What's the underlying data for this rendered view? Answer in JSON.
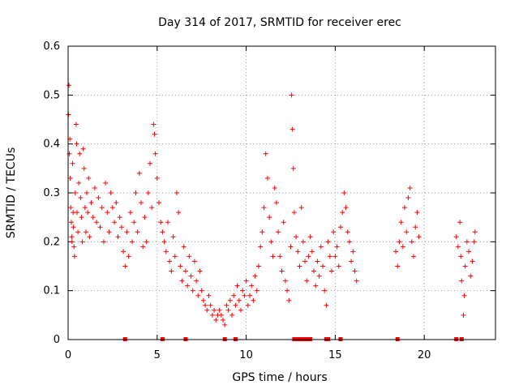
{
  "chart_data": {
    "type": "scatter",
    "title": "Day 314 of 2017, SRMTID for receiver erec",
    "xlabel": "GPS time / hours",
    "ylabel": "SRMTID / TECUs",
    "xlim": [
      0,
      24
    ],
    "ylim": [
      0,
      0.6
    ],
    "x_ticks": [
      0,
      5,
      10,
      15,
      20
    ],
    "x_tick_labels": [
      "0",
      "5",
      "10",
      "15",
      "20"
    ],
    "y_ticks": [
      0,
      0.1,
      0.2,
      0.3,
      0.4,
      0.5,
      0.6
    ],
    "y_tick_labels": [
      "0",
      "0.1",
      "0.2",
      "0.3",
      "0.4",
      "0.5",
      "0.6"
    ],
    "grid": true,
    "marker": "+",
    "color": "#ff0000",
    "series": [
      {
        "name": "SRMTID",
        "points": [
          [
            0.02,
            0.46
          ],
          [
            0.05,
            0.52
          ],
          [
            0.07,
            0.38
          ],
          [
            0.1,
            0.41
          ],
          [
            0.12,
            0.33
          ],
          [
            0.15,
            0.27
          ],
          [
            0.18,
            0.24
          ],
          [
            0.2,
            0.21
          ],
          [
            0.22,
            0.2
          ],
          [
            0.25,
            0.36
          ],
          [
            0.28,
            0.26
          ],
          [
            0.3,
            0.23
          ],
          [
            0.33,
            0.19
          ],
          [
            0.36,
            0.17
          ],
          [
            0.4,
            0.3
          ],
          [
            0.45,
            0.44
          ],
          [
            0.48,
            0.4
          ],
          [
            0.5,
            0.26
          ],
          [
            0.55,
            0.22
          ],
          [
            0.6,
            0.32
          ],
          [
            0.65,
            0.38
          ],
          [
            0.7,
            0.29
          ],
          [
            0.75,
            0.25
          ],
          [
            0.8,
            0.2
          ],
          [
            0.85,
            0.39
          ],
          [
            0.9,
            0.35
          ],
          [
            0.95,
            0.27
          ],
          [
            1.0,
            0.22
          ],
          [
            1.05,
            0.3
          ],
          [
            1.1,
            0.26
          ],
          [
            1.15,
            0.33
          ],
          [
            1.2,
            0.21
          ],
          [
            1.3,
            0.28
          ],
          [
            1.4,
            0.25
          ],
          [
            1.5,
            0.31
          ],
          [
            1.6,
            0.24
          ],
          [
            1.7,
            0.29
          ],
          [
            1.8,
            0.23
          ],
          [
            1.9,
            0.27
          ],
          [
            2.0,
            0.2
          ],
          [
            2.1,
            0.32
          ],
          [
            2.2,
            0.26
          ],
          [
            2.3,
            0.22
          ],
          [
            2.4,
            0.3
          ],
          [
            2.5,
            0.27
          ],
          [
            2.6,
            0.24
          ],
          [
            2.7,
            0.28
          ],
          [
            2.8,
            0.21
          ],
          [
            2.9,
            0.25
          ],
          [
            3.0,
            0.23
          ],
          [
            3.1,
            0.18
          ],
          [
            3.2,
            0.15
          ],
          [
            3.3,
            0.22
          ],
          [
            3.4,
            0.17
          ],
          [
            3.5,
            0.26
          ],
          [
            3.6,
            0.2
          ],
          [
            3.7,
            0.24
          ],
          [
            3.8,
            0.3
          ],
          [
            3.9,
            0.22
          ],
          [
            4.0,
            0.34
          ],
          [
            4.1,
            0.28
          ],
          [
            4.2,
            0.19
          ],
          [
            4.3,
            0.25
          ],
          [
            4.4,
            0.2
          ],
          [
            4.5,
            0.3
          ],
          [
            4.6,
            0.36
          ],
          [
            4.7,
            0.27
          ],
          [
            4.8,
            0.44
          ],
          [
            4.85,
            0.42
          ],
          [
            4.9,
            0.38
          ],
          [
            5.0,
            0.33
          ],
          [
            5.1,
            0.28
          ],
          [
            5.2,
            0.24
          ],
          [
            5.3,
            0.22
          ],
          [
            5.4,
            0.2
          ],
          [
            5.5,
            0.18
          ],
          [
            5.6,
            0.24
          ],
          [
            5.7,
            0.16
          ],
          [
            5.8,
            0.14
          ],
          [
            5.9,
            0.21
          ],
          [
            6.0,
            0.17
          ],
          [
            6.1,
            0.3
          ],
          [
            6.2,
            0.26
          ],
          [
            6.3,
            0.15
          ],
          [
            6.4,
            0.12
          ],
          [
            6.5,
            0.19
          ],
          [
            6.6,
            0.14
          ],
          [
            6.7,
            0.11
          ],
          [
            6.8,
            0.17
          ],
          [
            6.9,
            0.13
          ],
          [
            7.0,
            0.1
          ],
          [
            7.1,
            0.16
          ],
          [
            7.2,
            0.12
          ],
          [
            7.3,
            0.09
          ],
          [
            7.4,
            0.14
          ],
          [
            7.5,
            0.1
          ],
          [
            7.6,
            0.08
          ],
          [
            7.7,
            0.07
          ],
          [
            7.8,
            0.06
          ],
          [
            7.9,
            0.09
          ],
          [
            8.0,
            0.07
          ],
          [
            8.1,
            0.05
          ],
          [
            8.2,
            0.06
          ],
          [
            8.3,
            0.04
          ],
          [
            8.4,
            0.05
          ],
          [
            8.5,
            0.06
          ],
          [
            8.6,
            0.05
          ],
          [
            8.7,
            0.04
          ],
          [
            8.8,
            0.03
          ],
          [
            8.9,
            0.07
          ],
          [
            9.0,
            0.06
          ],
          [
            9.1,
            0.08
          ],
          [
            9.2,
            0.05
          ],
          [
            9.3,
            0.09
          ],
          [
            9.4,
            0.07
          ],
          [
            9.5,
            0.11
          ],
          [
            9.6,
            0.08
          ],
          [
            9.7,
            0.06
          ],
          [
            9.8,
            0.1
          ],
          [
            9.9,
            0.09
          ],
          [
            10.0,
            0.12
          ],
          [
            10.1,
            0.07
          ],
          [
            10.2,
            0.09
          ],
          [
            10.3,
            0.11
          ],
          [
            10.4,
            0.08
          ],
          [
            10.5,
            0.13
          ],
          [
            10.6,
            0.1
          ],
          [
            10.7,
            0.15
          ],
          [
            10.8,
            0.19
          ],
          [
            10.9,
            0.22
          ],
          [
            11.0,
            0.27
          ],
          [
            11.1,
            0.38
          ],
          [
            11.2,
            0.33
          ],
          [
            11.3,
            0.25
          ],
          [
            11.4,
            0.2
          ],
          [
            11.5,
            0.17
          ],
          [
            11.6,
            0.31
          ],
          [
            11.7,
            0.28
          ],
          [
            11.8,
            0.22
          ],
          [
            11.9,
            0.17
          ],
          [
            12.0,
            0.14
          ],
          [
            12.1,
            0.24
          ],
          [
            12.2,
            0.12
          ],
          [
            12.3,
            0.1
          ],
          [
            12.4,
            0.08
          ],
          [
            12.5,
            0.19
          ],
          [
            12.55,
            0.5
          ],
          [
            12.6,
            0.43
          ],
          [
            12.65,
            0.35
          ],
          [
            12.7,
            0.26
          ],
          [
            12.8,
            0.21
          ],
          [
            12.9,
            0.18
          ],
          [
            13.0,
            0.15
          ],
          [
            13.1,
            0.27
          ],
          [
            13.2,
            0.2
          ],
          [
            13.3,
            0.16
          ],
          [
            13.4,
            0.12
          ],
          [
            13.5,
            0.17
          ],
          [
            13.6,
            0.21
          ],
          [
            13.7,
            0.18
          ],
          [
            13.8,
            0.14
          ],
          [
            13.9,
            0.11
          ],
          [
            14.0,
            0.16
          ],
          [
            14.1,
            0.13
          ],
          [
            14.2,
            0.19
          ],
          [
            14.3,
            0.15
          ],
          [
            14.4,
            0.1
          ],
          [
            14.5,
            0.07
          ],
          [
            14.6,
            0.2
          ],
          [
            14.7,
            0.17
          ],
          [
            14.8,
            0.14
          ],
          [
            14.9,
            0.22
          ],
          [
            15.0,
            0.17
          ],
          [
            15.1,
            0.19
          ],
          [
            15.2,
            0.15
          ],
          [
            15.3,
            0.23
          ],
          [
            15.4,
            0.26
          ],
          [
            15.5,
            0.3
          ],
          [
            15.6,
            0.27
          ],
          [
            15.7,
            0.22
          ],
          [
            15.8,
            0.2
          ],
          [
            15.9,
            0.16
          ],
          [
            16.0,
            0.18
          ],
          [
            16.1,
            0.14
          ],
          [
            16.2,
            0.12
          ],
          [
            18.4,
            0.18
          ],
          [
            18.5,
            0.15
          ],
          [
            18.6,
            0.2
          ],
          [
            18.7,
            0.24
          ],
          [
            18.8,
            0.19
          ],
          [
            18.9,
            0.27
          ],
          [
            19.0,
            0.22
          ],
          [
            19.1,
            0.29
          ],
          [
            19.2,
            0.31
          ],
          [
            19.3,
            0.2
          ],
          [
            19.4,
            0.17
          ],
          [
            19.5,
            0.23
          ],
          [
            19.6,
            0.26
          ],
          [
            19.7,
            0.21
          ],
          [
            21.8,
            0.21
          ],
          [
            21.9,
            0.19
          ],
          [
            22.0,
            0.24
          ],
          [
            22.05,
            0.17
          ],
          [
            22.1,
            0.12
          ],
          [
            22.2,
            0.05
          ],
          [
            22.25,
            0.09
          ],
          [
            22.3,
            0.15
          ],
          [
            22.4,
            0.2
          ],
          [
            22.5,
            0.18
          ],
          [
            22.6,
            0.13
          ],
          [
            22.7,
            0.16
          ],
          [
            22.8,
            0.2
          ],
          [
            22.85,
            0.22
          ]
        ]
      }
    ],
    "zero_markers_x": [
      3.2,
      5.3,
      6.6,
      8.8,
      9.4,
      12.7,
      12.9,
      13.0,
      13.2,
      13.3,
      13.45,
      13.6,
      14.5,
      14.6,
      15.3,
      18.5,
      21.8,
      22.1
    ]
  }
}
